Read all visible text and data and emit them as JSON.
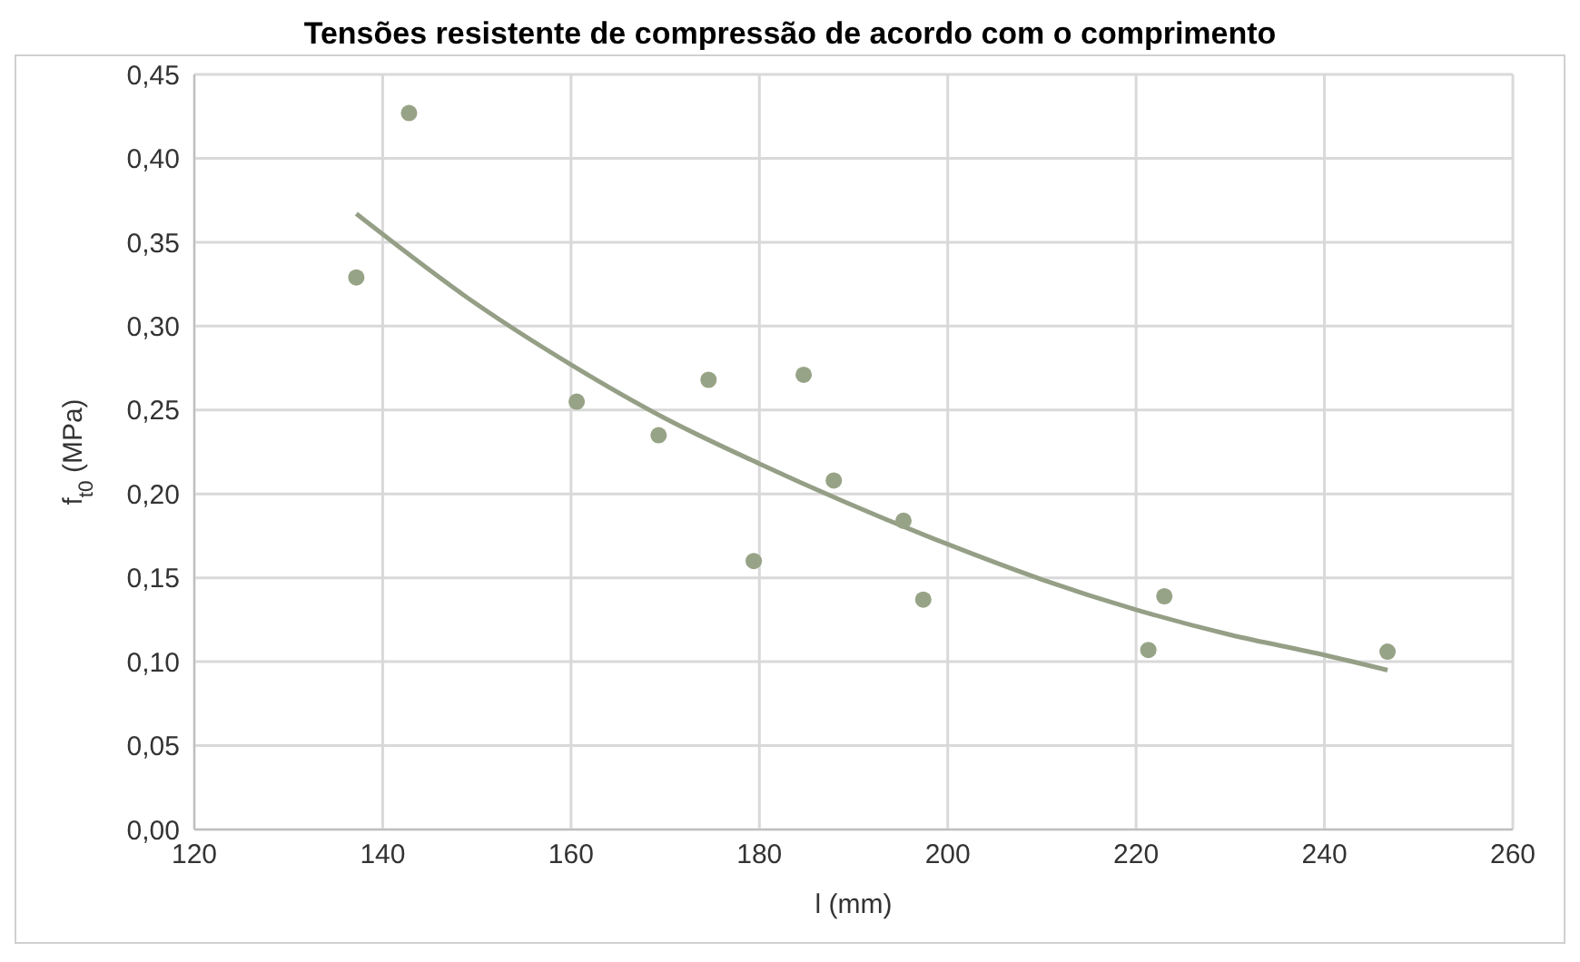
{
  "chart_data": {
    "type": "scatter",
    "title": "Tensões resistente de compressão de acordo com o comprimento",
    "xlabel": "l (mm)",
    "ylabel": "f$_{t0}$ (MPa)",
    "xlim": [
      120,
      260
    ],
    "xticks": [
      120,
      140,
      160,
      180,
      200,
      220,
      240,
      260
    ],
    "ylim": [
      0,
      0.45
    ],
    "yticks": [
      {
        "value": 0,
        "label": "0,00"
      },
      {
        "value": 0.05,
        "label": "0,05"
      },
      {
        "value": 0.1,
        "label": "0,10"
      },
      {
        "value": 0.15,
        "label": "0,15"
      },
      {
        "value": 0.2,
        "label": "0,20"
      },
      {
        "value": 0.25,
        "label": "0,25"
      },
      {
        "value": 0.3,
        "label": "0,30"
      },
      {
        "value": 0.35,
        "label": "0,35"
      },
      {
        "value": 0.4,
        "label": "0,40"
      },
      {
        "value": 0.45,
        "label": "0,45"
      }
    ],
    "grid": true,
    "series": [
      {
        "color": "#97a386",
        "marker": "circle",
        "x": [
          137.2,
          142.8,
          160.6,
          169.3,
          174.6,
          179.4,
          184.7,
          187.9,
          195.3,
          197.4,
          221.3,
          223.0,
          246.7
        ],
        "values": [
          0.329,
          0.427,
          0.255,
          0.235,
          0.268,
          0.16,
          0.271,
          0.208,
          0.184,
          0.137,
          0.107,
          0.139,
          0.106
        ]
      },
      {
        "type": "line",
        "marker": "none",
        "color": "#949f86",
        "x": [
          137.2,
          150,
          160,
          170,
          180,
          200,
          210,
          220,
          230,
          240,
          246.7
        ],
        "values": [
          0.367,
          0.313,
          0.277,
          0.245,
          0.218,
          0.17,
          0.149,
          0.131,
          0.116,
          0.104,
          0.095
        ]
      }
    ]
  }
}
